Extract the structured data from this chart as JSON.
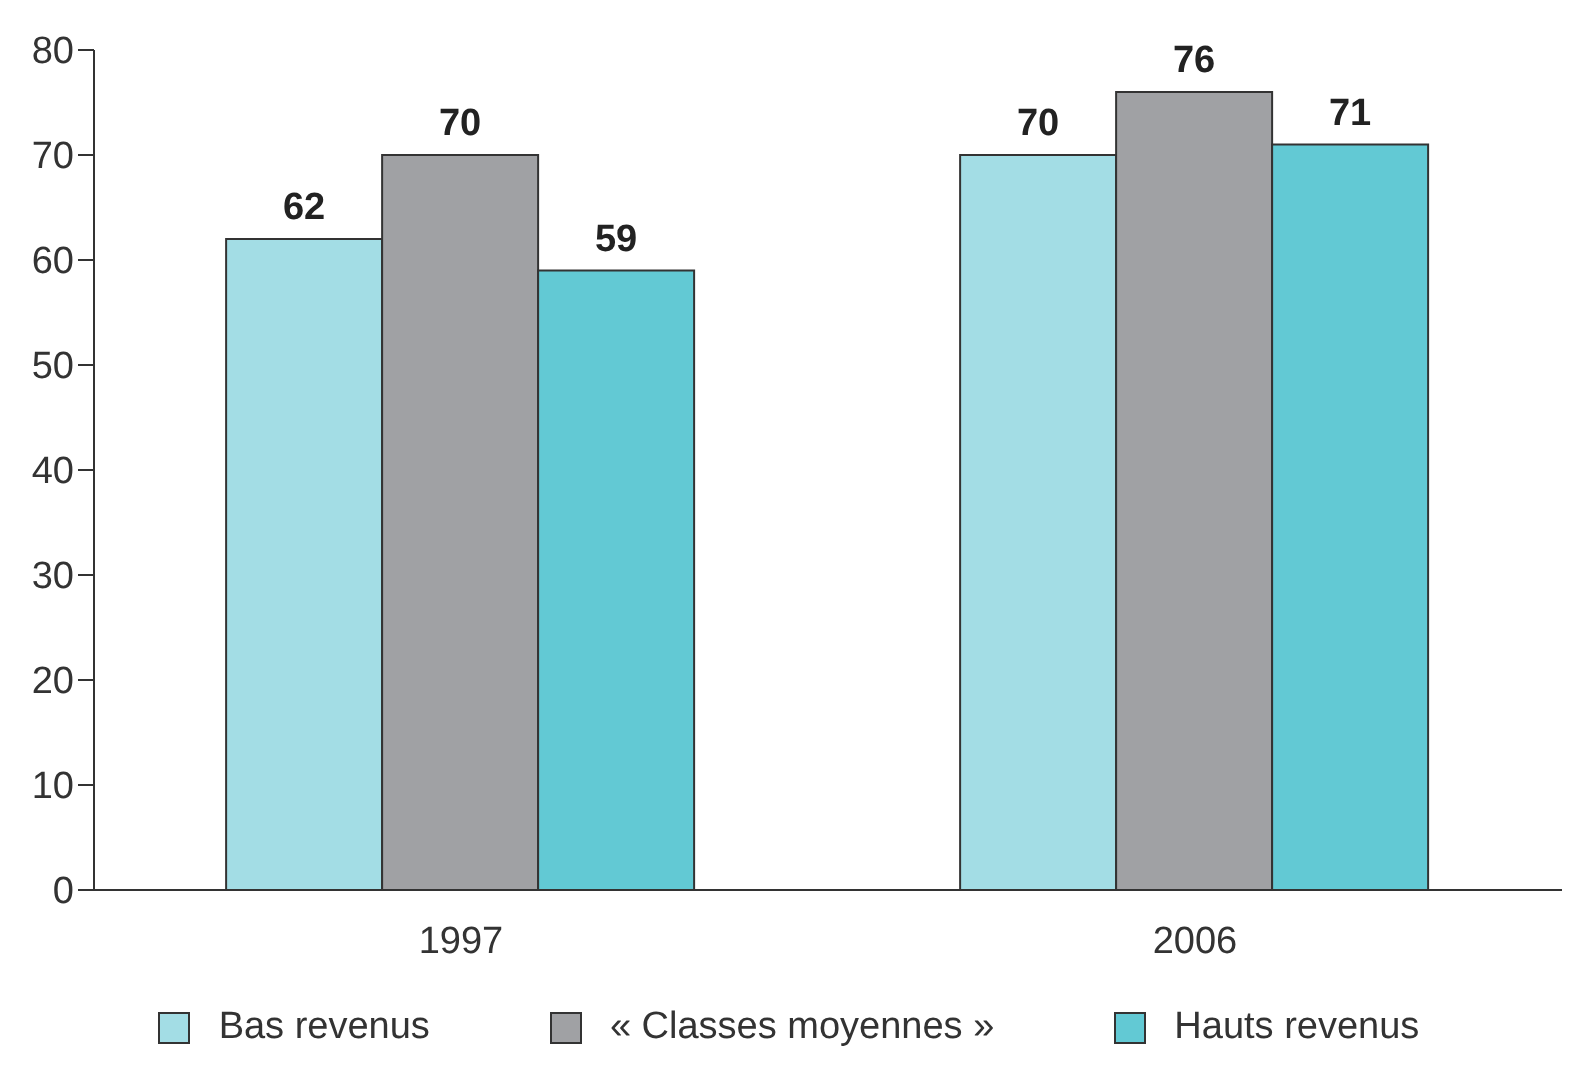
{
  "chart_data": {
    "type": "bar",
    "categories": [
      "1997",
      "2006"
    ],
    "series": [
      {
        "name": "Bas revenus",
        "color": "#a3dde5",
        "values": [
          62,
          70
        ]
      },
      {
        "name": "« Classes moyennes »",
        "color": "#a0a1a4",
        "values": [
          70,
          76
        ]
      },
      {
        "name": "Hauts revenus",
        "color": "#62c9d4",
        "values": [
          59,
          71
        ]
      }
    ],
    "ylim": [
      0,
      80
    ],
    "yticks": [
      0,
      10,
      20,
      30,
      40,
      50,
      60,
      70,
      80
    ],
    "data_labels": true,
    "grid": false,
    "legend": "bottom"
  }
}
